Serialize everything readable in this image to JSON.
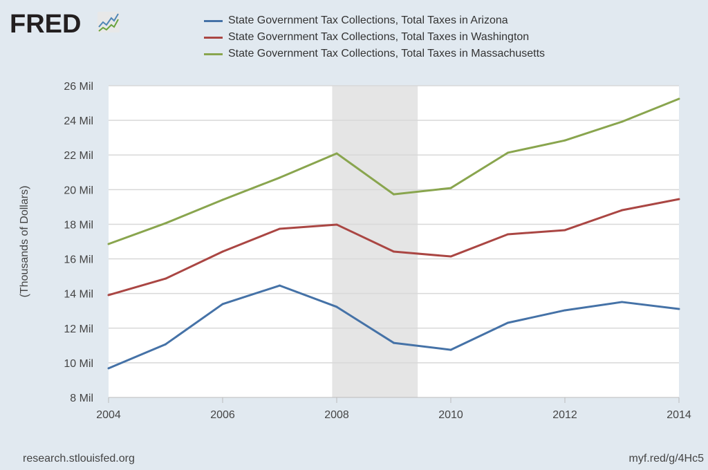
{
  "logo_text": "FRED",
  "footer": {
    "left": "research.stlouisfed.org",
    "right": "myf.red/g/4Hc5"
  },
  "chart_data": {
    "type": "line",
    "title": "",
    "ylabel": "(Thousands of Dollars)",
    "xlabel": "",
    "x": [
      2004,
      2005,
      2006,
      2007,
      2008,
      2009,
      2010,
      2011,
      2012,
      2013,
      2014
    ],
    "xlim": [
      2004,
      2014
    ],
    "ylim": [
      8,
      26
    ],
    "x_ticks": [
      "2004",
      "2006",
      "2008",
      "2010",
      "2012",
      "2014"
    ],
    "y_ticks": [
      "8 Mil",
      "10 Mil",
      "12 Mil",
      "14 Mil",
      "16 Mil",
      "18 Mil",
      "20 Mil",
      "22 Mil",
      "24 Mil",
      "26 Mil"
    ],
    "grid": true,
    "legend_placement": "top",
    "recession": [
      2007.92,
      2009.42
    ],
    "recession_color": "#e5e5e5",
    "series": [
      {
        "name": "State Government Tax Collections, Total Taxes in Arizona",
        "color": "#4572a7",
        "values": [
          9.68,
          11.07,
          13.39,
          14.46,
          13.23,
          11.15,
          10.75,
          12.31,
          13.03,
          13.51,
          13.11
        ]
      },
      {
        "name": "State Government Tax Collections, Total Taxes in Washington",
        "color": "#aa4643",
        "values": [
          13.91,
          14.86,
          16.42,
          17.74,
          17.98,
          16.42,
          16.14,
          17.42,
          17.66,
          18.81,
          19.45
        ]
      },
      {
        "name": "State Government Tax Collections, Total Taxes in Massachusetts",
        "color": "#89a54e",
        "values": [
          16.86,
          18.06,
          19.41,
          20.69,
          22.09,
          19.73,
          20.09,
          22.13,
          22.84,
          23.92,
          25.24
        ]
      }
    ]
  }
}
